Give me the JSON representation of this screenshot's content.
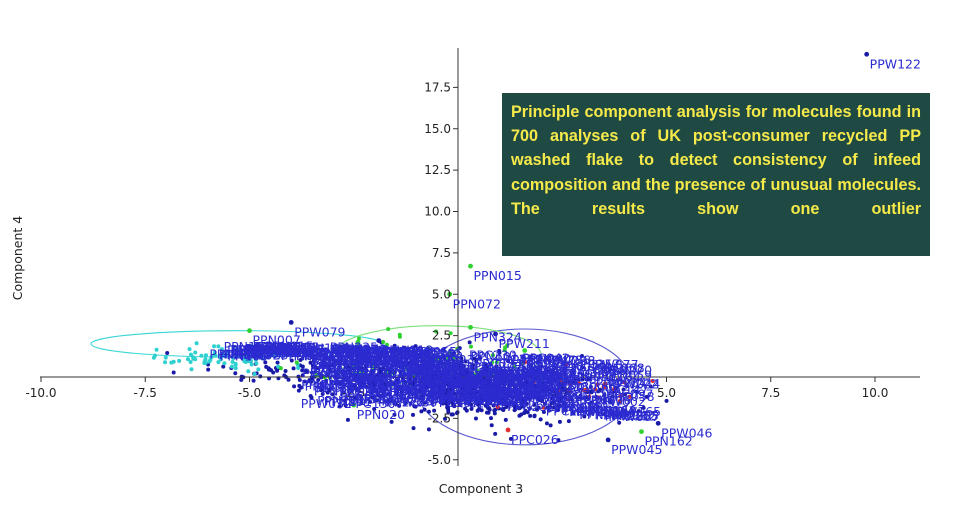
{
  "chart_data": {
    "type": "scatter",
    "title": "",
    "xlabel": "Component 3",
    "ylabel": "Component 4",
    "xlim": [
      -10.0,
      10.0
    ],
    "ylim": [
      -5.0,
      17.5
    ],
    "x_ticks": [
      -10.0,
      -7.5,
      -5.0,
      -2.5,
      0,
      2.5,
      5.0,
      7.5,
      10.0
    ],
    "x_tick_labels": [
      "-10.0",
      "-7.5",
      "-5.0",
      "-2.5",
      "",
      "2.5",
      "5.0",
      "7.5",
      "10.0"
    ],
    "y_ticks": [
      -5.0,
      -2.5,
      2.5,
      5.0,
      7.5,
      10.0,
      12.5,
      15.0,
      17.5
    ],
    "y_tick_labels": [
      "-5.0",
      "-2.5",
      "2.5",
      "5.0",
      "7.5",
      "10.0",
      "12.5",
      "15.0",
      "17.5"
    ],
    "grid": false,
    "annotation": "Principle component analysis for molecules found in 700 analyses of UK post-consumer recycled PP washed flake to detect consistency of infeed composition and the presence of unusual molecules. The results show one outlier",
    "series_colors": {
      "PPW": "#1a1aa8",
      "PPN": "#2fd02f",
      "PPC": "#e03030",
      "other": "#2fd0d0"
    },
    "labeled_points": [
      {
        "label": "PPW122",
        "x": 9.8,
        "y": 19.5,
        "group": "PPW"
      },
      {
        "label": "PPN015",
        "x": 0.3,
        "y": 6.7,
        "group": "PPN"
      },
      {
        "label": "PPN072",
        "x": -0.2,
        "y": 5.0,
        "group": "PPN"
      },
      {
        "label": "PPW079",
        "x": -4.0,
        "y": 3.3,
        "group": "PPW"
      },
      {
        "label": "PPN007",
        "x": -5.0,
        "y": 2.8,
        "group": "PPN"
      },
      {
        "label": "PPN080",
        "x": -2.4,
        "y": 2.1,
        "group": "PPN"
      },
      {
        "label": "PPW118",
        "x": -1.9,
        "y": 2.2,
        "group": "PPW"
      },
      {
        "label": "PPN324",
        "x": 0.3,
        "y": 3.0,
        "group": "PPN"
      },
      {
        "label": "PPW211",
        "x": 0.9,
        "y": 2.6,
        "group": "PPW"
      },
      {
        "label": "PPN047",
        "x": 1.6,
        "y": 1.6,
        "group": "PPN"
      },
      {
        "label": "PPN019",
        "x": -2.3,
        "y": 1.3,
        "group": "PPN"
      },
      {
        "label": "PPC032",
        "x": 1.6,
        "y": 0.9,
        "group": "PPC"
      },
      {
        "label": "PPC007",
        "x": 2.6,
        "y": 0.8,
        "group": "PPC"
      },
      {
        "label": "PPW006",
        "x": 2.6,
        "y": -0.1,
        "group": "PPW"
      },
      {
        "label": "PPC058",
        "x": 3.5,
        "y": -0.6,
        "group": "PPC"
      },
      {
        "label": "PPW002",
        "x": 3.2,
        "y": -0.9,
        "group": "PPW"
      },
      {
        "label": "PPN020",
        "x": -2.5,
        "y": -1.7,
        "group": "PPN"
      },
      {
        "label": "PPW046",
        "x": 4.8,
        "y": -2.8,
        "group": "PPW"
      },
      {
        "label": "PPC026",
        "x": 1.2,
        "y": -3.2,
        "group": "PPC"
      },
      {
        "label": "PPN162",
        "x": 4.4,
        "y": -3.3,
        "group": "PPN"
      },
      {
        "label": "PPW045",
        "x": 3.6,
        "y": -3.8,
        "group": "PPW"
      }
    ],
    "confidence_ellipses": [
      {
        "group": "other",
        "cx": -5.3,
        "cy": 2.0,
        "rx": 3.5,
        "ry": 0.8,
        "color": "#39d5d5"
      },
      {
        "group": "PPW",
        "cx": 1.6,
        "cy": -0.6,
        "rx": 2.6,
        "ry": 3.5,
        "color": "#5a5ad0"
      },
      {
        "group": "PPN",
        "cx": -0.5,
        "cy": 1.3,
        "rx": 2.5,
        "ry": 1.8,
        "color": "#7adf7a"
      }
    ]
  }
}
